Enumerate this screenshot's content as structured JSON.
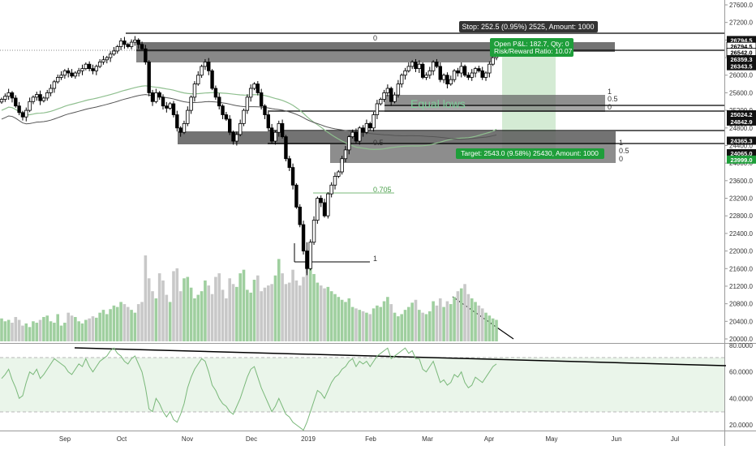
{
  "colors": {
    "up": "#ffffff",
    "down": "#000000",
    "wick": "#000000",
    "zone": "#5a5a5a",
    "zone_light": "#808080",
    "ma_green": "#8fbf8f",
    "ma_gray": "#555555",
    "vol_up": "#9fcf9f",
    "vol_down": "#c8c8c8",
    "rsi": "#7ab87a",
    "rsi_band": "#eaf5ea",
    "target_fill": "#cfe9cf",
    "pos_green": "#1e9e3a",
    "label_dark": "#333333"
  },
  "labels": {
    "stop": "Stop: 252.5 (0.95%) 2525, Amount: 1000",
    "open_pl": "Open P&L: 182.7, Qty: 0",
    "risk_reward": "Risk/Reward Ratio: 10.07",
    "target": "Target: 2543.0 (9.58%) 25430, Amount: 1000",
    "equal_lows": "Equal lows",
    "fib_0_top": "0",
    "fib_05": "0.5",
    "fib_0705": "0.705",
    "fib_1": "1",
    "fib_right_1": "1",
    "fib_right_05": "0.5",
    "fib_right_0": "0",
    "fib_low_1": "1",
    "fib_low_05": "0.5",
    "fib_low_0": "0"
  },
  "price_tags": [
    {
      "text": "26794.5",
      "price": 26800,
      "style": "dark"
    },
    {
      "text": "26794.5",
      "price": 26655,
      "style": "white"
    },
    {
      "text": "26542.0",
      "price": 26520,
      "style": "white"
    },
    {
      "text": "26359.3",
      "price": 26365,
      "style": "dark"
    },
    {
      "text": "26343.5",
      "price": 26205,
      "style": "dark"
    },
    {
      "text": "25024.2",
      "price": 25110,
      "style": "dark"
    },
    {
      "text": "24842.9",
      "price": 24945,
      "style": "dark"
    },
    {
      "text": "24365.3",
      "price": 24510,
      "style": "dark"
    },
    {
      "text": "24065.0",
      "price": 24225,
      "style": "dark"
    },
    {
      "text": "23999.0",
      "price": 24080,
      "style": "green"
    }
  ],
  "chart_data": {
    "type": "candlestick",
    "x_labels": [
      "Sep",
      "Oct",
      "Nov",
      "Dec",
      "2019",
      "Feb",
      "Mar",
      "Apr",
      "May",
      "Jun",
      "Jul"
    ],
    "price_axis": {
      "ticks": [
        "27600.0",
        "27200.0",
        "26800.0",
        "26400.0",
        "26000.0",
        "25600.0",
        "25200.0",
        "24800.0",
        "24400.0",
        "24000.0",
        "23600.0",
        "23200.0",
        "22800.0",
        "22400.0",
        "22000.0",
        "21600.0",
        "21200.0",
        "20800.0",
        "20400.0",
        "20000.0"
      ],
      "range": [
        19700,
        27800
      ]
    },
    "rsi_axis": {
      "ticks": [
        "80.0000",
        "60.0000",
        "40.0000",
        "20.0000"
      ],
      "range": [
        15,
        83
      ],
      "band": [
        30,
        70
      ]
    },
    "candles_close": [
      25450,
      25520,
      25600,
      25480,
      25300,
      25150,
      25050,
      25200,
      25400,
      25500,
      25560,
      25420,
      25480,
      25600,
      25700,
      25850,
      25950,
      26000,
      26100,
      26050,
      25980,
      26050,
      26100,
      26150,
      26250,
      26150,
      26100,
      26200,
      26300,
      26350,
      26400,
      26480,
      26550,
      26650,
      26780,
      26700,
      26650,
      26750,
      26800,
      26700,
      26600,
      26300,
      25600,
      25400,
      25600,
      25500,
      25300,
      25250,
      25350,
      25100,
      24800,
      24700,
      24900,
      25200,
      25500,
      25800,
      26000,
      26200,
      26300,
      26100,
      25700,
      25500,
      25300,
      25100,
      25000,
      24700,
      24500,
      24650,
      24900,
      25200,
      25500,
      25700,
      25800,
      25600,
      25300,
      25100,
      24800,
      24500,
      24700,
      24900,
      24600,
      24100,
      23900,
      23500,
      23000,
      22600,
      22000,
      21600,
      22200,
      22700,
      23200,
      23100,
      22800,
      23300,
      23500,
      23700,
      23800,
      24100,
      24300,
      24600,
      24700,
      24500,
      24800,
      24700,
      24900,
      24800,
      25100,
      25350,
      25450,
      25600,
      25700,
      25400,
      25550,
      25800,
      26000,
      26100,
      26200,
      26300,
      26150,
      26250,
      25950,
      26000,
      26100,
      26300,
      26200,
      25900,
      26000,
      25800,
      25900,
      26100,
      26050,
      26200,
      26000,
      25950,
      26050,
      26150,
      26100,
      25950,
      26050,
      26250,
      26400,
      26500
    ],
    "volume": [
      32,
      28,
      30,
      26,
      34,
      30,
      22,
      25,
      20,
      28,
      26,
      30,
      34,
      36,
      28,
      26,
      38,
      22,
      26,
      40,
      36,
      34,
      28,
      25,
      30,
      32,
      35,
      33,
      40,
      44,
      38,
      45,
      50,
      48,
      55,
      52,
      48,
      44,
      40,
      52,
      55,
      120,
      88,
      70,
      60,
      95,
      85,
      65,
      55,
      98,
      102,
      70,
      88,
      90,
      75,
      60,
      65,
      70,
      85,
      78,
      66,
      90,
      95,
      72,
      60,
      88,
      80,
      76,
      95,
      100,
      72,
      68,
      86,
      92,
      70,
      75,
      78,
      80,
      92,
      115,
      95,
      80,
      82,
      100,
      85,
      78,
      90,
      120,
      108,
      94,
      82,
      78,
      74,
      76,
      70,
      66,
      62,
      58,
      55,
      60,
      48,
      46,
      44,
      42,
      40,
      38,
      46,
      50,
      48,
      56,
      62,
      52,
      40,
      35,
      38,
      44,
      48,
      54,
      58,
      44,
      40,
      38,
      42,
      56,
      50,
      60,
      48,
      56,
      52,
      62,
      70,
      74,
      80,
      66,
      60,
      55,
      50,
      46,
      40,
      36,
      32,
      30
    ],
    "rsi": [
      55,
      58,
      62,
      54,
      48,
      40,
      42,
      52,
      60,
      58,
      62,
      55,
      58,
      62,
      66,
      70,
      68,
      66,
      64,
      60,
      58,
      62,
      66,
      64,
      70,
      64,
      60,
      64,
      68,
      70,
      72,
      76,
      78,
      74,
      72,
      68,
      66,
      70,
      72,
      66,
      60,
      48,
      32,
      30,
      40,
      36,
      30,
      26,
      30,
      24,
      22,
      28,
      36,
      48,
      56,
      62,
      66,
      70,
      68,
      60,
      50,
      46,
      40,
      36,
      34,
      30,
      28,
      34,
      40,
      48,
      56,
      62,
      64,
      56,
      48,
      42,
      36,
      30,
      34,
      40,
      34,
      28,
      26,
      22,
      20,
      18,
      16,
      22,
      30,
      38,
      46,
      44,
      40,
      46,
      52,
      56,
      58,
      62,
      64,
      68,
      70,
      64,
      68,
      66,
      68,
      64,
      68,
      72,
      74,
      76,
      78,
      70,
      72,
      74,
      76,
      78,
      74,
      76,
      70,
      70,
      62,
      60,
      64,
      68,
      60,
      52,
      54,
      50,
      52,
      58,
      56,
      60,
      52,
      48,
      50,
      56,
      54,
      52,
      56,
      60,
      64,
      66
    ],
    "moving_averages": [
      "ma-green",
      "ma-gray"
    ]
  }
}
